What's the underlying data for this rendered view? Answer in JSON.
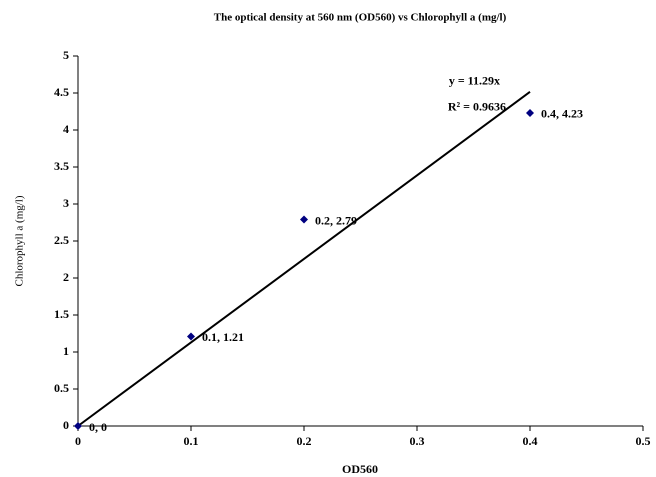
{
  "chart_data": {
    "type": "scatter",
    "title": "The optical density at 560 nm (OD560) vs Chlorophyll a (mg/l)",
    "x_label": "OD560",
    "y_label": "Chlorophyll a (mg/l)",
    "x": [
      0,
      0.1,
      0.2,
      0.4
    ],
    "values": [
      0,
      1.21,
      2.79,
      4.23
    ],
    "value_labels": [
      "0, 0",
      "0.1, 1.21",
      "0.2, 2.79",
      "0.4, 4.23"
    ],
    "color": "#000080",
    "xlim": [
      0,
      0.5
    ],
    "xticks": [
      0,
      0.1,
      0.2,
      0.3,
      0.4,
      0.5
    ],
    "ylim": [
      0,
      5
    ],
    "yticks": [
      0,
      0.5,
      1,
      1.5,
      2,
      2.5,
      3,
      3.5,
      4,
      4.5,
      5
    ],
    "grid": false,
    "trendline": {
      "slope": 11.29,
      "x_range": [
        0,
        0.4
      ],
      "equation": "y = 11.29x",
      "r_squared_label": "R² = 0.9636"
    }
  }
}
